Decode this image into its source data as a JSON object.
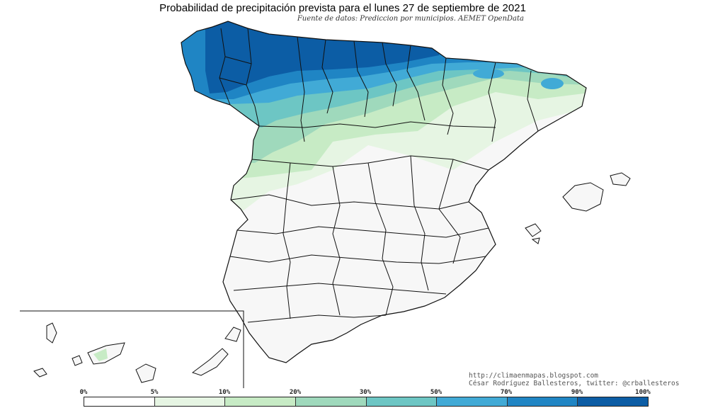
{
  "title": "Probabilidad de precipitación prevista para el lunes 27 de septiembre de 2021",
  "subtitle": "Fuente de datos: Prediccion por municipios. AEMET OpenData",
  "credits": {
    "url": "http://climaenmapas.blogspot.com",
    "author": "César Rodríguez Ballesteros, twitter: @crballesteros"
  },
  "legend": {
    "labels": [
      "0%",
      "5%",
      "10%",
      "20%",
      "30%",
      "50%",
      "70%",
      "90%",
      "100%"
    ],
    "colors": [
      "#ffffff",
      "#e6f5e3",
      "#c7ebc5",
      "#9fd9bc",
      "#6dc6c4",
      "#41aad6",
      "#1f85c4",
      "#0c5da5"
    ]
  },
  "palette": {
    "land": "#f7f7f7",
    "border": "#111111",
    "water": "#ffffff"
  }
}
